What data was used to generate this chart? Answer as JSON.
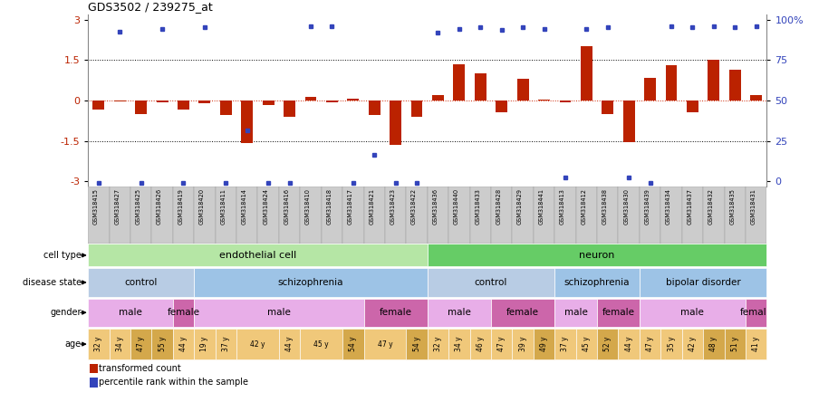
{
  "title": "GDS3502 / 239275_at",
  "samples": [
    "GSM318415",
    "GSM318427",
    "GSM318425",
    "GSM318426",
    "GSM318419",
    "GSM318420",
    "GSM318411",
    "GSM318414",
    "GSM318424",
    "GSM318416",
    "GSM318410",
    "GSM318418",
    "GSM318417",
    "GSM318421",
    "GSM318423",
    "GSM318422",
    "GSM318436",
    "GSM318440",
    "GSM318433",
    "GSM318428",
    "GSM318429",
    "GSM318441",
    "GSM318413",
    "GSM318412",
    "GSM318438",
    "GSM318430",
    "GSM318439",
    "GSM318434",
    "GSM318437",
    "GSM318432",
    "GSM318435",
    "GSM318431"
  ],
  "bar_values": [
    -0.35,
    -0.05,
    -0.5,
    -0.08,
    -0.35,
    -0.1,
    -0.55,
    -1.58,
    -0.18,
    -0.6,
    0.12,
    -0.08,
    0.08,
    -0.55,
    -1.63,
    -0.6,
    0.2,
    1.35,
    1.0,
    -0.45,
    0.82,
    0.05,
    -0.08,
    2.0,
    -0.5,
    -1.55,
    0.85,
    1.3,
    -0.45,
    1.5,
    1.15,
    0.2
  ],
  "dot_values": [
    -3.05,
    2.55,
    -3.05,
    2.65,
    -3.05,
    2.7,
    -3.05,
    -1.1,
    -3.05,
    -3.05,
    2.75,
    2.75,
    -3.05,
    -2.0,
    -3.05,
    -3.05,
    2.5,
    2.65,
    2.7,
    2.6,
    2.7,
    2.65,
    -2.85,
    2.65,
    2.7,
    -2.85,
    -3.05,
    2.75,
    2.7,
    2.75,
    2.7,
    2.75
  ],
  "cell_type_groups": [
    {
      "label": "endothelial cell",
      "start": 0,
      "end": 16,
      "color": "#b5e6a5"
    },
    {
      "label": "neuron",
      "start": 16,
      "end": 32,
      "color": "#66cc66"
    }
  ],
  "disease_state_groups": [
    {
      "label": "control",
      "start": 0,
      "end": 5,
      "color": "#b8cce4"
    },
    {
      "label": "schizophrenia",
      "start": 5,
      "end": 15,
      "color": "#9dc3e6"
    },
    {
      "label": "control",
      "start": 15,
      "end": 16,
      "color": "#b8cce4"
    },
    {
      "label": "control",
      "start": 16,
      "end": 22,
      "color": "#b8cce4"
    },
    {
      "label": "schizophrenia",
      "start": 22,
      "end": 26,
      "color": "#9dc3e6"
    },
    {
      "label": "bipolar disorder",
      "start": 26,
      "end": 32,
      "color": "#9dc3e6"
    }
  ],
  "gender_groups": [
    {
      "label": "male",
      "start": 0,
      "end": 4,
      "color": "#e8aee8"
    },
    {
      "label": "female",
      "start": 4,
      "end": 5,
      "color": "#cc66aa"
    },
    {
      "label": "male",
      "start": 5,
      "end": 13,
      "color": "#e8aee8"
    },
    {
      "label": "female",
      "start": 13,
      "end": 16,
      "color": "#cc66aa"
    },
    {
      "label": "male",
      "start": 16,
      "end": 19,
      "color": "#e8aee8"
    },
    {
      "label": "female",
      "start": 19,
      "end": 22,
      "color": "#cc66aa"
    },
    {
      "label": "male",
      "start": 22,
      "end": 24,
      "color": "#e8aee8"
    },
    {
      "label": "female",
      "start": 24,
      "end": 26,
      "color": "#cc66aa"
    },
    {
      "label": "male",
      "start": 26,
      "end": 31,
      "color": "#e8aee8"
    },
    {
      "label": "female",
      "start": 31,
      "end": 32,
      "color": "#cc66aa"
    }
  ],
  "age_data": [
    {
      "label": "32 y",
      "start": 0,
      "end": 1,
      "color": "#f0c87a"
    },
    {
      "label": "34 y",
      "start": 1,
      "end": 2,
      "color": "#f0c87a"
    },
    {
      "label": "47 y",
      "start": 2,
      "end": 3,
      "color": "#d4a84b"
    },
    {
      "label": "55 y",
      "start": 3,
      "end": 4,
      "color": "#d4a84b"
    },
    {
      "label": "44 y",
      "start": 4,
      "end": 5,
      "color": "#f0c87a"
    },
    {
      "label": "19 y",
      "start": 5,
      "end": 6,
      "color": "#f0c87a"
    },
    {
      "label": "37 y",
      "start": 6,
      "end": 7,
      "color": "#f0c87a"
    },
    {
      "label": "42 y",
      "start": 7,
      "end": 9,
      "color": "#f0c87a"
    },
    {
      "label": "44 y",
      "start": 9,
      "end": 10,
      "color": "#f0c87a"
    },
    {
      "label": "45 y",
      "start": 10,
      "end": 12,
      "color": "#f0c87a"
    },
    {
      "label": "54 y",
      "start": 12,
      "end": 13,
      "color": "#d4a84b"
    },
    {
      "label": "47 y",
      "start": 13,
      "end": 15,
      "color": "#f0c87a"
    },
    {
      "label": "54 y",
      "start": 15,
      "end": 16,
      "color": "#d4a84b"
    },
    {
      "label": "32 y",
      "start": 16,
      "end": 17,
      "color": "#f0c87a"
    },
    {
      "label": "34 y",
      "start": 17,
      "end": 18,
      "color": "#f0c87a"
    },
    {
      "label": "46 y",
      "start": 18,
      "end": 19,
      "color": "#f0c87a"
    },
    {
      "label": "47 y",
      "start": 19,
      "end": 20,
      "color": "#f0c87a"
    },
    {
      "label": "39 y",
      "start": 20,
      "end": 21,
      "color": "#f0c87a"
    },
    {
      "label": "49 y",
      "start": 21,
      "end": 22,
      "color": "#d4a84b"
    },
    {
      "label": "37 y",
      "start": 22,
      "end": 23,
      "color": "#f0c87a"
    },
    {
      "label": "45 y",
      "start": 23,
      "end": 24,
      "color": "#f0c87a"
    },
    {
      "label": "52 y",
      "start": 24,
      "end": 25,
      "color": "#d4a84b"
    },
    {
      "label": "44 y",
      "start": 25,
      "end": 26,
      "color": "#f0c87a"
    },
    {
      "label": "47 y",
      "start": 26,
      "end": 27,
      "color": "#f0c87a"
    },
    {
      "label": "35 y",
      "start": 27,
      "end": 28,
      "color": "#f0c87a"
    },
    {
      "label": "42 y",
      "start": 28,
      "end": 29,
      "color": "#f0c87a"
    },
    {
      "label": "48 y",
      "start": 29,
      "end": 30,
      "color": "#d4a84b"
    },
    {
      "label": "51 y",
      "start": 30,
      "end": 31,
      "color": "#d4a84b"
    },
    {
      "label": "41 y",
      "start": 31,
      "end": 32,
      "color": "#f0c87a"
    }
  ],
  "ylim": [
    -3.2,
    3.2
  ],
  "yticks_left": [
    -3,
    -1.5,
    0,
    1.5,
    3
  ],
  "bar_color": "#bb2200",
  "dot_color": "#3344bb",
  "hline_color": "#cc2200",
  "background_color": "#ffffff",
  "xlabels_bg": "#cccccc"
}
